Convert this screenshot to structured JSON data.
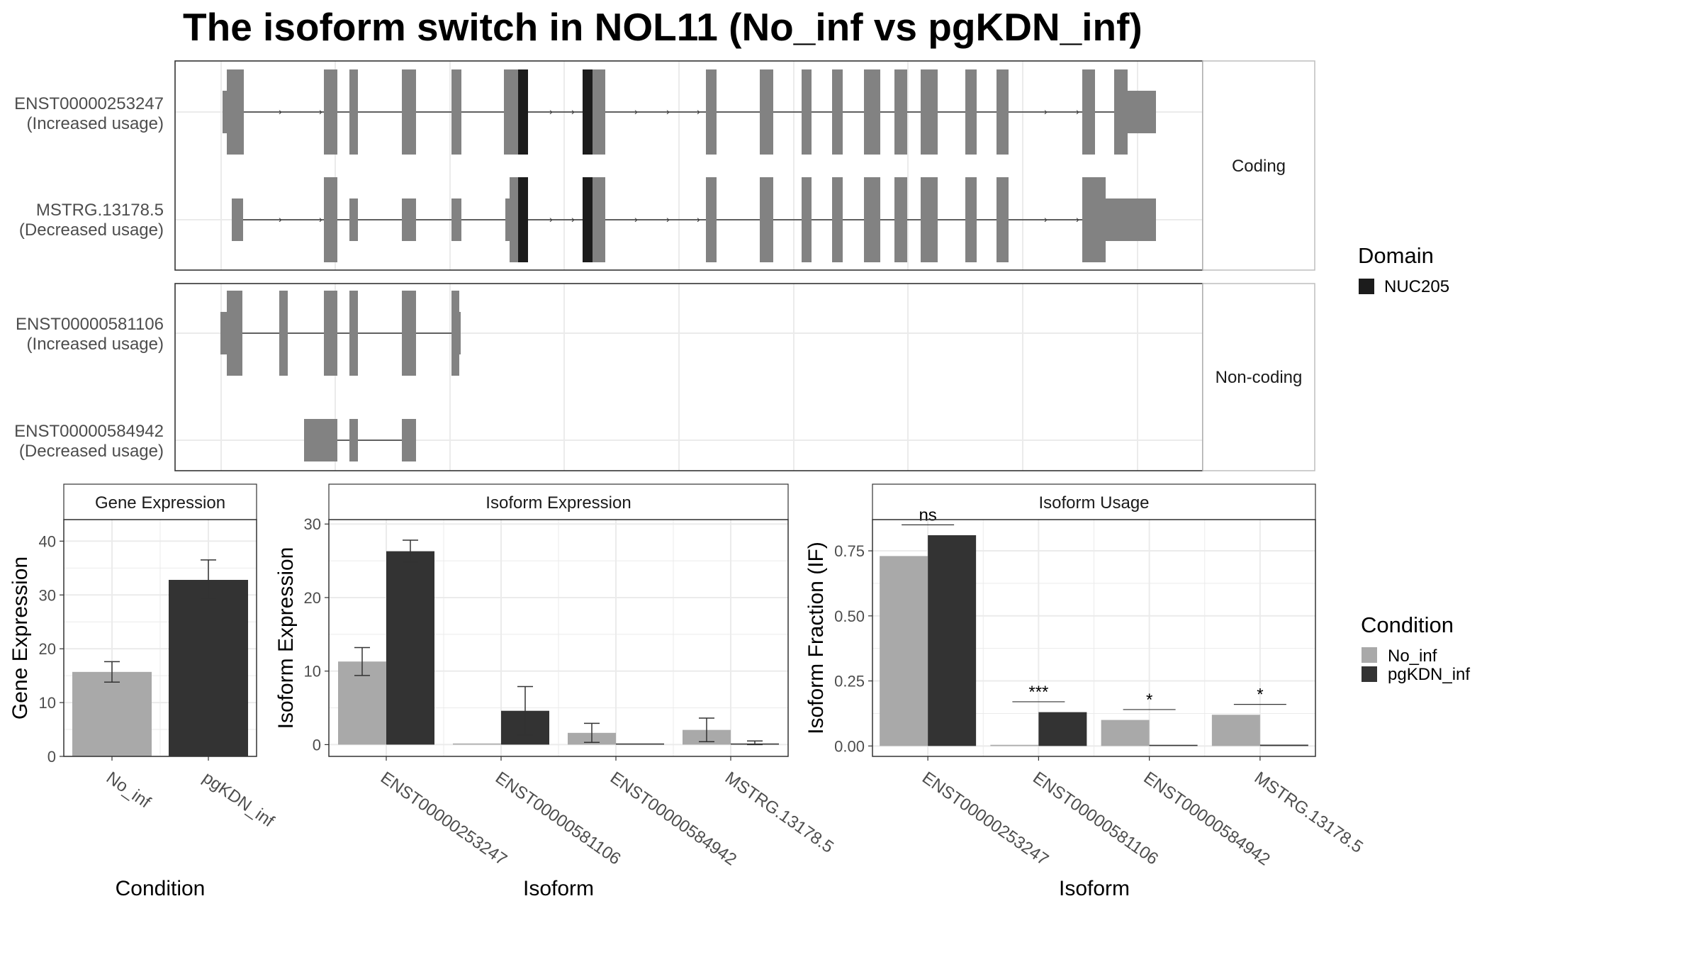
{
  "title": "The isoform switch in NOL11 (No_inf vs pgKDN_inf)",
  "colors": {
    "no_inf": "#a9a9a9",
    "pgkdn_inf": "#333333",
    "exon": "#828282",
    "domain": "#1c1c1c",
    "grid": "#ebebeb",
    "panel_border": "#333333",
    "strip_border": "#bdbdbd"
  },
  "structure": {
    "facets": [
      "Coding",
      "Non-coding"
    ],
    "transcripts": [
      {
        "id": "ENST00000253247",
        "label_line1": "ENST00000253247",
        "label_line2": "(Increased usage)",
        "facet": 0
      },
      {
        "id": "MSTRG.13178.5",
        "label_line1": "MSTRG.13178.5",
        "label_line2": "(Decreased usage)",
        "facet": 0
      },
      {
        "id": "ENST00000581106",
        "label_line1": "ENST00000581106",
        "label_line2": "(Increased usage)",
        "facet": 1
      },
      {
        "id": "ENST00000584942",
        "label_line1": "ENST00000584942",
        "label_line2": "(Decreased usage)",
        "facet": 1
      }
    ],
    "domain_legend": {
      "title": "Domain",
      "items": [
        {
          "name": "NUC205",
          "color": "#1c1c1c"
        }
      ]
    }
  },
  "chart_data": [
    {
      "type": "bar",
      "strip": "Gene Expression",
      "xlabel": "Condition",
      "ylabel": "Gene Expression",
      "ylim": [
        0,
        44
      ],
      "yticks": [
        0,
        10,
        20,
        30,
        40
      ],
      "categories": [
        "No_inf",
        "pgKDN_inf"
      ],
      "values": [
        15.7,
        32.8
      ],
      "errors": [
        [
          13.8,
          17.6
        ],
        [
          29.2,
          36.5
        ]
      ]
    },
    {
      "type": "bar",
      "strip": "Isoform Expression",
      "xlabel": "Isoform",
      "ylabel": "Isoform Expression",
      "ylim": [
        -1.6,
        30.6
      ],
      "yticks": [
        0,
        10,
        20,
        30
      ],
      "categories": [
        "ENST00000253247",
        "ENST00000581106",
        "ENST00000584942",
        "MSTRG.13178.5"
      ],
      "series": [
        {
          "name": "No_inf",
          "values": [
            11.3,
            0,
            1.6,
            2.0
          ],
          "errors": [
            [
              9.4,
              13.2
            ],
            [
              0,
              0
            ],
            [
              0.3,
              2.9
            ],
            [
              0.4,
              3.6
            ]
          ]
        },
        {
          "name": "pgKDN_inf",
          "values": [
            26.3,
            4.6,
            0,
            0.15
          ],
          "errors": [
            [
              24.8,
              27.8
            ],
            [
              1.3,
              7.9
            ],
            [
              0,
              0
            ],
            [
              0,
              0.5
            ]
          ]
        }
      ]
    },
    {
      "type": "bar",
      "strip": "Isoform Usage",
      "xlabel": "Isoform",
      "ylabel": "Isoform Fraction (IF)",
      "ylim": [
        -0.04,
        0.87
      ],
      "yticks": [
        0,
        0.25,
        0.5,
        0.75
      ],
      "ytick_labels": [
        "0.00",
        "0.25",
        "0.50",
        "0.75"
      ],
      "categories": [
        "ENST00000253247",
        "ENST00000581106",
        "ENST00000584942",
        "MSTRG.13178.5"
      ],
      "series": [
        {
          "name": "No_inf",
          "values": [
            0.73,
            0,
            0.1,
            0.12
          ]
        },
        {
          "name": "pgKDN_inf",
          "values": [
            0.81,
            0.13,
            0,
            0.005
          ]
        }
      ],
      "annotations": [
        "ns",
        "***",
        "*",
        "*"
      ]
    }
  ],
  "legend": {
    "title": "Condition",
    "items": [
      {
        "name": "No_inf",
        "color": "#a9a9a9"
      },
      {
        "name": "pgKDN_inf",
        "color": "#333333"
      }
    ]
  }
}
